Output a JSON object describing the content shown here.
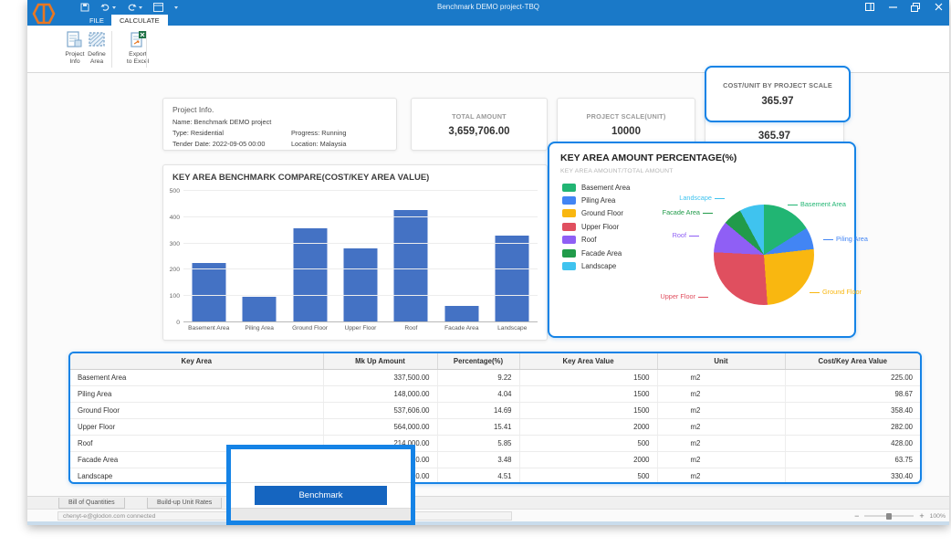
{
  "window": {
    "title": "Benchmark DEMO project-TBQ"
  },
  "ribbon": {
    "tabs": [
      {
        "label": "FILE"
      },
      {
        "label": "CALCULATE"
      }
    ],
    "buttons": [
      {
        "label": "Project\nInfo"
      },
      {
        "label": "Define\nArea"
      },
      {
        "label": "Export\nto Excel"
      }
    ]
  },
  "project_info": {
    "title": "Project Info.",
    "name": "Name: Benchmark DEMO project",
    "type": "Type: Residential",
    "progress": "Progress: Running",
    "tender": "Tender Date: 2022-09-05 00:00",
    "location": "Location: Malaysia"
  },
  "stats": [
    {
      "label": "TOTAL AMOUNT",
      "value": "3,659,706.00"
    },
    {
      "label": "PROJECT SCALE(UNIT)",
      "value": "10000"
    },
    {
      "label": "COST/UNIT BY PROJECT SCALE",
      "value": "365.97"
    }
  ],
  "callout": {
    "label": "COST/UNIT BY PROJECT SCALE",
    "value": "365.97"
  },
  "chart_data": [
    {
      "type": "bar",
      "title": "KEY AREA BENCHMARK COMPARE(COST/KEY AREA VALUE)",
      "categories": [
        "Basement Area",
        "Piling Area",
        "Ground Floor",
        "Upper Floor",
        "Roof",
        "Facade Area",
        "Landscape"
      ],
      "values": [
        225.0,
        98.67,
        358.4,
        282.0,
        428.0,
        63.75,
        330.4
      ],
      "ylim": [
        0,
        500
      ],
      "yticks": [
        0,
        100,
        200,
        300,
        400,
        500
      ],
      "bar_color": "#4472c4",
      "grid": true,
      "legend_position": "none"
    },
    {
      "type": "pie",
      "title": "KEY AREA AMOUNT PERCENTAGE(%)",
      "subtitle": "KEY AREA AMOUNT/TOTAL AMOUNT",
      "labels": [
        "Basement Area",
        "Piling Area",
        "Ground Floor",
        "Upper Floor",
        "Roof",
        "Facade Area",
        "Landscape"
      ],
      "values": [
        9.22,
        4.04,
        14.69,
        15.41,
        5.85,
        3.48,
        4.51
      ],
      "colors": [
        "#21b573",
        "#4285f4",
        "#f9b710",
        "#e04f5f",
        "#8f5ff5",
        "#219b4a",
        "#3fc3ef"
      ],
      "legend_position": "left"
    }
  ],
  "table": {
    "columns": [
      "Key Area",
      "Mk Up Amount",
      "Percentage(%)",
      "Key Area Value",
      "Unit",
      "Cost/Key Area Value"
    ],
    "rows": [
      [
        "Basement Area",
        "337,500.00",
        "9.22",
        "1500",
        "m2",
        "225.00"
      ],
      [
        "Piling Area",
        "148,000.00",
        "4.04",
        "1500",
        "m2",
        "98.67"
      ],
      [
        "Ground Floor",
        "537,606.00",
        "14.69",
        "1500",
        "m2",
        "358.40"
      ],
      [
        "Upper Floor",
        "564,000.00",
        "15.41",
        "2000",
        "m2",
        "282.00"
      ],
      [
        "Roof",
        "214,000.00",
        "5.85",
        "500",
        "m2",
        "428.00"
      ],
      [
        "Facade Area",
        "127,500.00",
        "3.48",
        "2000",
        "m2",
        "63.75"
      ],
      [
        "Landscape",
        "165,200.00",
        "4.51",
        "500",
        "m2",
        "330.40"
      ]
    ]
  },
  "popup": {
    "button_label": "Benchmark"
  },
  "bottom_tabs": [
    {
      "label": "Bill of Quantities"
    },
    {
      "label": "Build-up Unit Rates"
    }
  ],
  "status": {
    "connection": "chenyt-e@glodon.com connected",
    "zoom_minus": "−",
    "zoom_plus": "+",
    "zoom_level": "100%"
  },
  "colors": {
    "accent": "#1a79c8",
    "highlight": "#1583e6",
    "bar": "#4472c4",
    "button": "#1565c0"
  }
}
